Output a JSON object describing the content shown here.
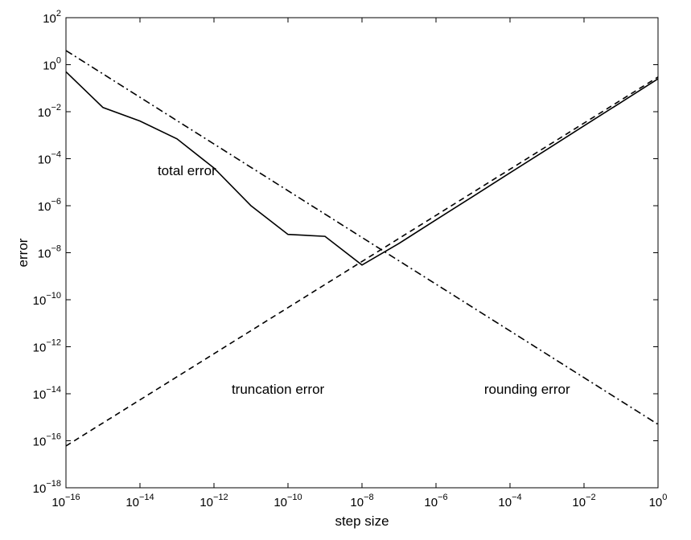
{
  "chart_data": {
    "type": "line",
    "title": "",
    "xlabel": "step size",
    "ylabel": "error",
    "xscale": "log",
    "yscale": "log",
    "xlim": [
      1e-16,
      1
    ],
    "ylim": [
      1e-18,
      100
    ],
    "grid": false,
    "x_ticks": [
      {
        "value": 1e-16,
        "base": "10",
        "exp": "−16"
      },
      {
        "value": 1e-14,
        "base": "10",
        "exp": "−14"
      },
      {
        "value": 1e-12,
        "base": "10",
        "exp": "−12"
      },
      {
        "value": 1e-10,
        "base": "10",
        "exp": "−10"
      },
      {
        "value": 1e-08,
        "base": "10",
        "exp": "−8"
      },
      {
        "value": 1e-06,
        "base": "10",
        "exp": "−6"
      },
      {
        "value": 0.0001,
        "base": "10",
        "exp": "−4"
      },
      {
        "value": 0.01,
        "base": "10",
        "exp": "−2"
      },
      {
        "value": 1,
        "base": "10",
        "exp": "0"
      }
    ],
    "y_ticks": [
      {
        "value": 100,
        "base": "10",
        "exp": "2"
      },
      {
        "value": 1,
        "base": "10",
        "exp": "0"
      },
      {
        "value": 0.01,
        "base": "10",
        "exp": "−2"
      },
      {
        "value": 0.0001,
        "base": "10",
        "exp": "−4"
      },
      {
        "value": 1e-06,
        "base": "10",
        "exp": "−6"
      },
      {
        "value": 1e-08,
        "base": "10",
        "exp": "−8"
      },
      {
        "value": 1e-10,
        "base": "10",
        "exp": "−10"
      },
      {
        "value": 1e-12,
        "base": "10",
        "exp": "−12"
      },
      {
        "value": 1e-14,
        "base": "10",
        "exp": "−14"
      },
      {
        "value": 1e-16,
        "base": "10",
        "exp": "−16"
      },
      {
        "value": 1e-18,
        "base": "10",
        "exp": "−18"
      }
    ],
    "series": [
      {
        "id": "total",
        "style": "solid",
        "x": [
          1e-16,
          1e-15,
          1e-14,
          1e-13,
          1e-12,
          1e-11,
          1e-10,
          1e-09,
          1e-08,
          1e-07,
          1e-06,
          1e-05,
          0.0001,
          0.001,
          0.01,
          0.1,
          1
        ],
        "y": [
          0.5,
          0.015,
          0.004,
          0.0007,
          4e-05,
          1e-06,
          6e-08,
          5e-08,
          3e-09,
          2.5e-08,
          2.5e-07,
          2.5e-06,
          2.5e-05,
          0.00025,
          0.0025,
          0.025,
          0.25
        ]
      },
      {
        "id": "truncation",
        "style": "dashed",
        "x": [
          1e-16,
          1
        ],
        "y": [
          6e-17,
          0.3
        ]
      },
      {
        "id": "rounding",
        "style": "dashdot",
        "x": [
          1e-16,
          1
        ],
        "y": [
          4,
          5e-16
        ]
      }
    ],
    "annotations": [
      {
        "text": "total error",
        "x": 3e-14,
        "y": 2e-05
      },
      {
        "text": "truncation error",
        "x": 3e-12,
        "y": 1e-14
      },
      {
        "text": "rounding error",
        "x": 2e-05,
        "y": 1e-14
      }
    ],
    "colors": {
      "axis": "#000000",
      "line": "#000000",
      "background": "#ffffff"
    }
  }
}
